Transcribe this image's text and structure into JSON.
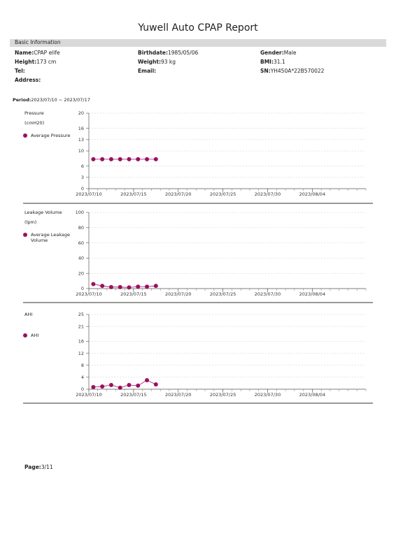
{
  "title": "Yuwell Auto CPAP Report",
  "basic_info": {
    "heading": "Basic Information",
    "fields": [
      {
        "label": "Name:",
        "value": "CPAP elife"
      },
      {
        "label": "Birthdate:",
        "value": "1985/05/06"
      },
      {
        "label": "Gender:",
        "value": "Male"
      },
      {
        "label": "Height:",
        "value": "173 cm"
      },
      {
        "label": "Weight:",
        "value": "93 kg"
      },
      {
        "label": "BMI:",
        "value": "31.1"
      },
      {
        "label": "Tel:"
      },
      {
        "label": "Email:"
      },
      {
        "label": "SN:",
        "value": "YH450A*22B570022"
      },
      {
        "label": "Address:"
      }
    ]
  },
  "period": {
    "label": "Period:",
    "value": "2023/07/10 ~ 2023/07/17"
  },
  "chart_data": [
    {
      "type": "line",
      "title": "Pressure",
      "unit": "(cmH20)",
      "x": [
        "2023/07/10",
        "2023/07/11",
        "2023/07/12",
        "2023/07/13",
        "2023/07/14",
        "2023/07/15",
        "2023/07/16",
        "2023/07/17"
      ],
      "series": [
        {
          "name": "Average Pressure",
          "color": "#9b1060",
          "values": [
            7.8,
            7.8,
            7.8,
            7.8,
            7.8,
            7.8,
            7.8,
            7.8
          ]
        }
      ],
      "xlim": [
        "2023/07/10",
        "2023/08/10"
      ],
      "xticks": [
        "2023/07/10",
        "2023/07/15",
        "2023/07/20",
        "2023/07/25",
        "2023/07/30",
        "2023/08/04"
      ],
      "ylim": [
        0,
        20
      ],
      "yticks": [
        0,
        3,
        6,
        10,
        13,
        16,
        20
      ],
      "grid": true
    },
    {
      "type": "line",
      "title": "Leakage Volume",
      "unit": "(lpm)",
      "x": [
        "2023/07/10",
        "2023/07/11",
        "2023/07/12",
        "2023/07/13",
        "2023/07/14",
        "2023/07/15",
        "2023/07/16",
        "2023/07/17"
      ],
      "series": [
        {
          "name": "Average Leakage Volume",
          "color": "#9b1060",
          "values": [
            6,
            3.5,
            2,
            2,
            1.5,
            2.5,
            2.5,
            3.5
          ]
        }
      ],
      "xlim": [
        "2023/07/10",
        "2023/08/10"
      ],
      "xticks": [
        "2023/07/10",
        "2023/07/15",
        "2023/07/20",
        "2023/07/25",
        "2023/07/30",
        "2023/08/04"
      ],
      "ylim": [
        0,
        100
      ],
      "yticks": [
        0,
        20,
        40,
        60,
        80,
        100
      ],
      "grid": true
    },
    {
      "type": "line",
      "title": "AHI",
      "x": [
        "2023/07/10",
        "2023/07/11",
        "2023/07/12",
        "2023/07/13",
        "2023/07/14",
        "2023/07/15",
        "2023/07/16",
        "2023/07/17"
      ],
      "series": [
        {
          "name": "AHI",
          "color": "#9b1060",
          "values": [
            0.7,
            0.9,
            1.4,
            0.5,
            1.4,
            1.2,
            3.0,
            1.6
          ]
        }
      ],
      "xlim": [
        "2023/07/10",
        "2023/08/10"
      ],
      "xticks": [
        "2023/07/10",
        "2023/07/15",
        "2023/07/20",
        "2023/07/25",
        "2023/07/30",
        "2023/08/04"
      ],
      "ylim": [
        0,
        25
      ],
      "yticks": [
        0,
        4,
        8,
        12,
        16,
        21,
        25
      ],
      "grid": true
    }
  ],
  "page": {
    "label": "Page:",
    "value": "3/11"
  }
}
